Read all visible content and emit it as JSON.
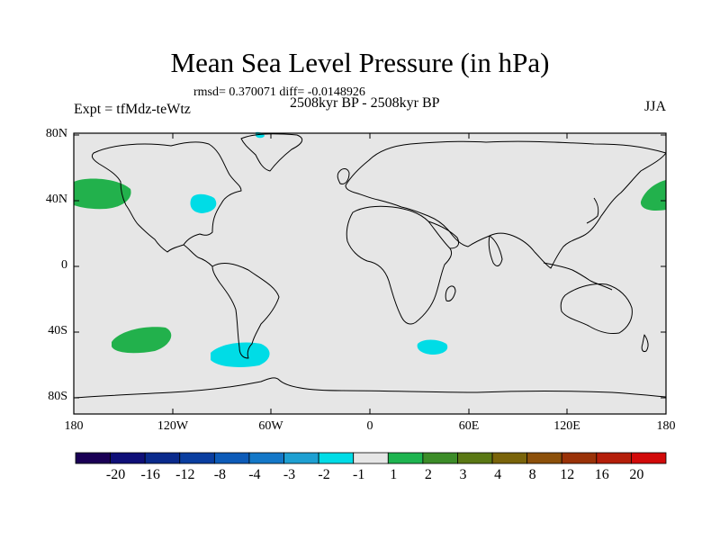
{
  "title": "Mean Sea Level Pressure (in hPa)",
  "stats": "rmsd= 0.370071 diff= -0.0148926",
  "period": "2508kyr BP - 2508kyr BP",
  "experiment": "Expt = tfMdz-teWtz",
  "season": "JJA",
  "lat_labels": [
    "80N",
    "40N",
    "0",
    "40S",
    "80S"
  ],
  "lon_labels": [
    "180",
    "120W",
    "60W",
    "0",
    "60E",
    "120E",
    "180"
  ],
  "colorbar": {
    "colors": [
      "#1a0055",
      "#0f0f78",
      "#0a2a8c",
      "#0a3ea0",
      "#0d5bb8",
      "#1478c8",
      "#1ea0d2",
      "#00dce6",
      "#e6e6e6",
      "#1eb450",
      "#3c8c28",
      "#5a7814",
      "#7a640a",
      "#8c500a",
      "#9a3208",
      "#b41e0a",
      "#d20a0a"
    ],
    "labels": [
      "-20",
      "-16",
      "-12",
      "-8",
      "-4",
      "-3",
      "-2",
      "-1",
      "1",
      "2",
      "3",
      "4",
      "8",
      "12",
      "16",
      "20"
    ]
  },
  "map_colors": {
    "background": "#e6e6e6",
    "positive": "#22b14c",
    "negative": "#00dce6",
    "coast": "#000000"
  }
}
